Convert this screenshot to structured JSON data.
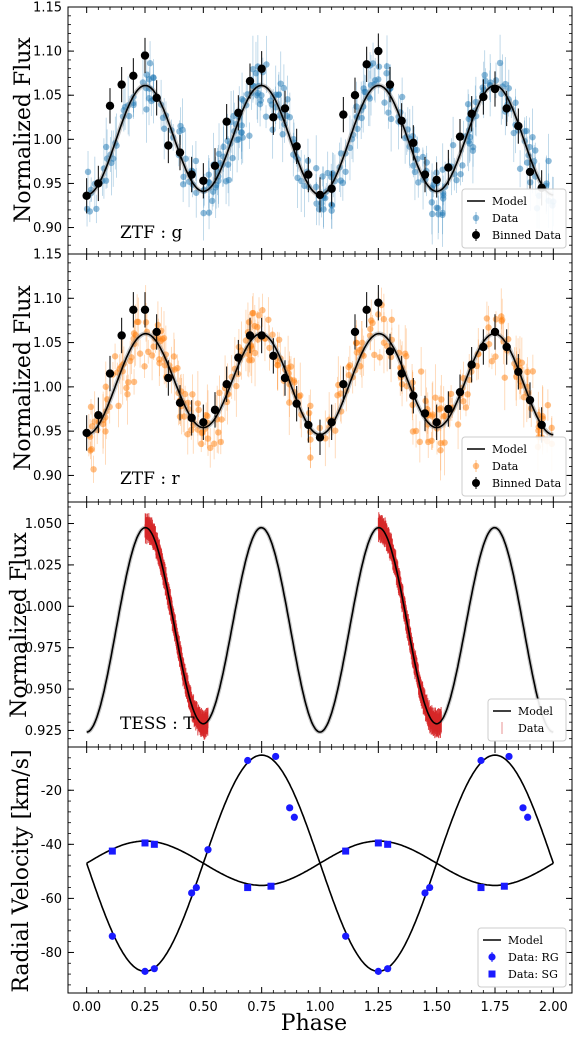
{
  "chart_data": [
    {
      "type": "scatter",
      "panel": "ztf-g",
      "ylabel": "Normalized Flux",
      "band_label": "ZTF : g",
      "ylim": [
        0.87,
        1.15
      ],
      "yticks": [
        "0.90",
        "0.95",
        "1.00",
        "1.05",
        "1.10",
        "1.15"
      ],
      "xlim": [
        -0.08,
        2.08
      ],
      "colors": {
        "data": "#1f77b4",
        "binned": "#000000",
        "model": "#000000"
      },
      "legend": {
        "position": "lower-right",
        "entries": [
          "Model",
          "Data",
          "Binned Data"
        ]
      },
      "model": {
        "mean": 1.0,
        "amp_a": 0.061,
        "amp_b": 0.002
      },
      "binned": {
        "x": [
          0.0,
          0.05,
          0.1,
          0.15,
          0.2,
          0.25,
          0.3,
          0.35,
          0.4,
          0.45,
          0.5,
          0.55,
          0.6,
          0.65,
          0.7,
          0.75,
          0.8,
          0.85,
          0.9,
          0.95,
          1.0,
          1.05,
          1.1,
          1.15,
          1.2,
          1.25,
          1.3,
          1.35,
          1.4,
          1.45,
          1.5,
          1.55,
          1.6,
          1.65,
          1.7,
          1.75,
          1.8,
          1.85,
          1.9,
          1.95
        ],
        "y": [
          0.936,
          0.95,
          1.038,
          1.062,
          1.072,
          1.095,
          1.047,
          0.993,
          0.985,
          0.96,
          0.953,
          0.97,
          1.02,
          1.03,
          1.066,
          1.08,
          1.025,
          1.035,
          0.992,
          0.96,
          0.937,
          0.944,
          1.028,
          1.05,
          1.085,
          1.1,
          1.062,
          1.021,
          0.996,
          0.96,
          0.954,
          0.968,
          1.003,
          1.029,
          1.048,
          1.057,
          1.035,
          1.015,
          0.963,
          0.945
        ]
      }
    },
    {
      "type": "scatter",
      "panel": "ztf-r",
      "ylabel": "Normalized Flux",
      "band_label": "ZTF : r",
      "ylim": [
        0.87,
        1.15
      ],
      "yticks": [
        "0.90",
        "0.95",
        "1.00",
        "1.05",
        "1.10",
        "1.15"
      ],
      "xlim": [
        -0.08,
        2.08
      ],
      "colors": {
        "data": "#ff7f0e",
        "binned": "#000000",
        "model": "#000000"
      },
      "legend": {
        "position": "lower-right",
        "entries": [
          "Model",
          "Data",
          "Binned Data"
        ]
      },
      "model": {
        "mean": 1.005,
        "amp_a": 0.055,
        "amp_b": 0.004
      },
      "binned": {
        "x": [
          0.0,
          0.05,
          0.1,
          0.15,
          0.2,
          0.25,
          0.3,
          0.35,
          0.4,
          0.45,
          0.5,
          0.55,
          0.6,
          0.65,
          0.7,
          0.75,
          0.8,
          0.85,
          0.9,
          0.95,
          1.0,
          1.05,
          1.1,
          1.15,
          1.2,
          1.25,
          1.3,
          1.35,
          1.4,
          1.45,
          1.5,
          1.55,
          1.6,
          1.65,
          1.7,
          1.75,
          1.8,
          1.85,
          1.9,
          1.95
        ],
        "y": [
          0.948,
          0.968,
          1.015,
          1.058,
          1.087,
          1.087,
          1.062,
          1.01,
          0.982,
          0.965,
          0.96,
          0.974,
          1.003,
          1.033,
          1.058,
          1.058,
          1.035,
          1.01,
          0.981,
          0.957,
          0.943,
          0.96,
          1.003,
          1.062,
          1.087,
          1.095,
          1.04,
          1.015,
          0.99,
          0.97,
          0.96,
          0.975,
          0.994,
          1.025,
          1.045,
          1.062,
          1.045,
          1.017,
          0.985,
          0.957
        ]
      }
    },
    {
      "type": "line",
      "panel": "tess",
      "ylabel": "Normalized Flux",
      "band_label": "TESS : T",
      "ylim": [
        0.915,
        1.063
      ],
      "yticks": [
        "0.925",
        "0.950",
        "0.975",
        "1.000",
        "1.025",
        "1.050"
      ],
      "xlim": [
        -0.08,
        2.08
      ],
      "colors": {
        "data": "#d62728",
        "model": "#000000"
      },
      "legend": {
        "position": "lower-right",
        "entries": [
          "Model",
          "Data"
        ]
      },
      "model": {
        "mean": 0.987,
        "amp_a": 0.0605,
        "amp_b": 0.0025
      },
      "data_phase_ranges": [
        [
          0.25,
          0.52
        ],
        [
          1.25,
          1.52
        ]
      ]
    },
    {
      "type": "scatter",
      "panel": "radial-velocity",
      "ylabel": "Radial Velocity [km/s]",
      "xlabel": "Phase",
      "ylim": [
        -95,
        -4
      ],
      "yticks": [
        "-80",
        "-60",
        "-40",
        "-20"
      ],
      "xticks": [
        "0.00",
        "0.25",
        "0.50",
        "0.75",
        "1.00",
        "1.25",
        "1.50",
        "1.75",
        "2.00"
      ],
      "xlim": [
        -0.08,
        2.08
      ],
      "colors": {
        "rg": "#1a1aff",
        "sg": "#1a1aff",
        "model": "#000000"
      },
      "legend": {
        "position": "lower-right",
        "entries": [
          "Model",
          "Data: RG",
          "Data: SG"
        ]
      },
      "rg_model": {
        "gamma": -47,
        "K": 40
      },
      "sg_model": {
        "gamma": -47,
        "K": 8.2
      },
      "series": [
        {
          "name": "Data: RG",
          "x": [
            0.11,
            0.25,
            0.29,
            0.45,
            0.47,
            0.52,
            0.69,
            0.81,
            0.87,
            0.89,
            1.11,
            1.25,
            1.29,
            1.45,
            1.47,
            1.69,
            1.81,
            1.87,
            1.89
          ],
          "y": [
            -74,
            -87,
            -86,
            -58,
            -56,
            -42,
            -9,
            -7.5,
            -26.5,
            -30,
            -74,
            -87,
            -86,
            -58,
            -56,
            -9,
            -7.5,
            -26.5,
            -30
          ]
        },
        {
          "name": "Data: SG",
          "x": [
            0.11,
            0.25,
            0.29,
            0.69,
            0.79,
            1.11,
            1.25,
            1.29,
            1.69,
            1.79
          ],
          "y": [
            -42.5,
            -39.5,
            -40,
            -56,
            -55.5,
            -42.5,
            -39.5,
            -40,
            -56,
            -55.5
          ]
        }
      ]
    }
  ]
}
